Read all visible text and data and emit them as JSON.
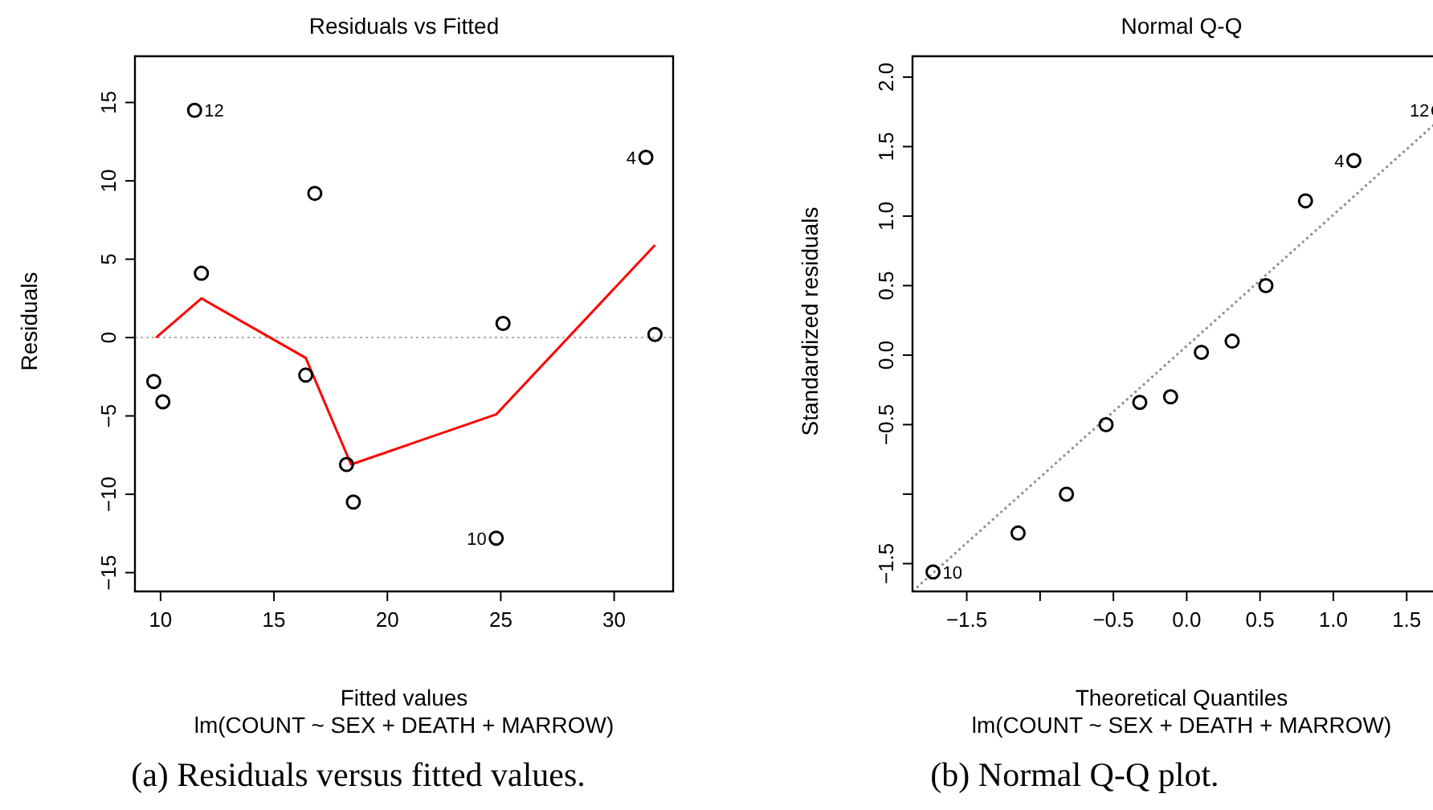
{
  "chart_data": [
    {
      "type": "scatter",
      "title": "Residuals vs Fitted",
      "xlabel": "Fitted values",
      "ylabel": "Residuals",
      "xlim": [
        8.87,
        32.6
      ],
      "xticks": [
        10,
        15,
        20,
        25,
        30
      ],
      "ylim": [
        -16.2,
        17.95
      ],
      "yticks": [
        -15,
        -10,
        -5,
        0,
        5,
        10,
        15
      ],
      "series": [
        {
          "color": "#000000",
          "marker": "circle",
          "x": [
            9.7,
            10.1,
            11.5,
            11.8,
            16.4,
            16.8,
            18.2,
            18.5,
            24.8,
            25.1,
            31.4,
            31.8
          ],
          "values": [
            -2.8,
            -4.1,
            14.5,
            4.1,
            -2.4,
            9.2,
            -8.1,
            -10.5,
            -12.8,
            0.9,
            11.5,
            0.2
          ]
        },
        {
          "type": "line",
          "color": "#ff0000",
          "marker": "none",
          "x": [
            9.8,
            11.8,
            16.4,
            18.4,
            24.8,
            31.8
          ],
          "values": [
            0,
            2.5,
            -1.3,
            -8.1,
            -4.9,
            5.9
          ]
        }
      ],
      "ref_lines": [
        {
          "axis": "y",
          "value": 0,
          "color": "#b0b0b0",
          "line_style": "dotted"
        }
      ],
      "annotations": [
        {
          "text": "12",
          "x": 11.5,
          "y": 14.5
        },
        {
          "text": "4",
          "x": 31.4,
          "y": 11.5
        },
        {
          "text": "10",
          "x": 24.8,
          "y": -12.8
        },
        "lm(COUNT ~ SEX + DEATH + MARROW)",
        "(a) Residuals versus fitted values."
      ]
    },
    {
      "type": "scatter",
      "title": "Normal Q-Q",
      "xlabel": "Theoretical Quantiles",
      "ylabel": "Standardized residuals",
      "xlim": [
        -1.87,
        1.8
      ],
      "xticks": [
        {
          "value": -1.5,
          "label": "−1.5"
        },
        {
          "value": -1,
          "label": null
        },
        {
          "value": -0.5,
          "label": "−0.5"
        },
        {
          "value": 0,
          "label": "0.0"
        },
        {
          "value": 0.5,
          "label": "0.5"
        },
        {
          "value": 1,
          "label": "1.0"
        },
        {
          "value": 1.5,
          "label": "1.5"
        }
      ],
      "ylim": [
        -1.7,
        2.15
      ],
      "yticks": [
        {
          "value": -1.5,
          "label": "−1.5"
        },
        {
          "value": -1,
          "label": null
        },
        {
          "value": -0.5,
          "label": "−0.5"
        },
        {
          "value": 0,
          "label": "0.0"
        },
        {
          "value": 0.5,
          "label": "0.5"
        },
        {
          "value": 1,
          "label": "1.0"
        },
        {
          "value": 1.5,
          "label": "1.5"
        },
        {
          "value": 2,
          "label": "2.0"
        }
      ],
      "series": [
        {
          "color": "#000000",
          "marker": "circle",
          "x": [
            -1.73,
            -1.15,
            -0.82,
            -0.55,
            -0.32,
            -0.11,
            0.1,
            0.31,
            0.54,
            0.81,
            1.14,
            1.72
          ],
          "values": [
            -1.56,
            -1.28,
            -1.0,
            -0.5,
            -0.34,
            -0.3,
            0.02,
            0.1,
            0.5,
            1.11,
            1.4,
            1.76
          ]
        },
        {
          "type": "line",
          "color": "#909090",
          "marker": "none",
          "line_style": "dotted",
          "x": [
            -1.87,
            1.7
          ],
          "values": [
            -1.7,
            1.67
          ]
        }
      ],
      "annotations": [
        {
          "text": "10",
          "x": -1.73,
          "y": -1.56
        },
        {
          "text": "4",
          "x": 1.14,
          "y": 1.4
        },
        {
          "text": "12",
          "x": 1.72,
          "y": 1.76
        },
        "lm(COUNT ~ SEX + DEATH + MARROW)",
        "(b) Normal Q-Q plot."
      ]
    }
  ]
}
